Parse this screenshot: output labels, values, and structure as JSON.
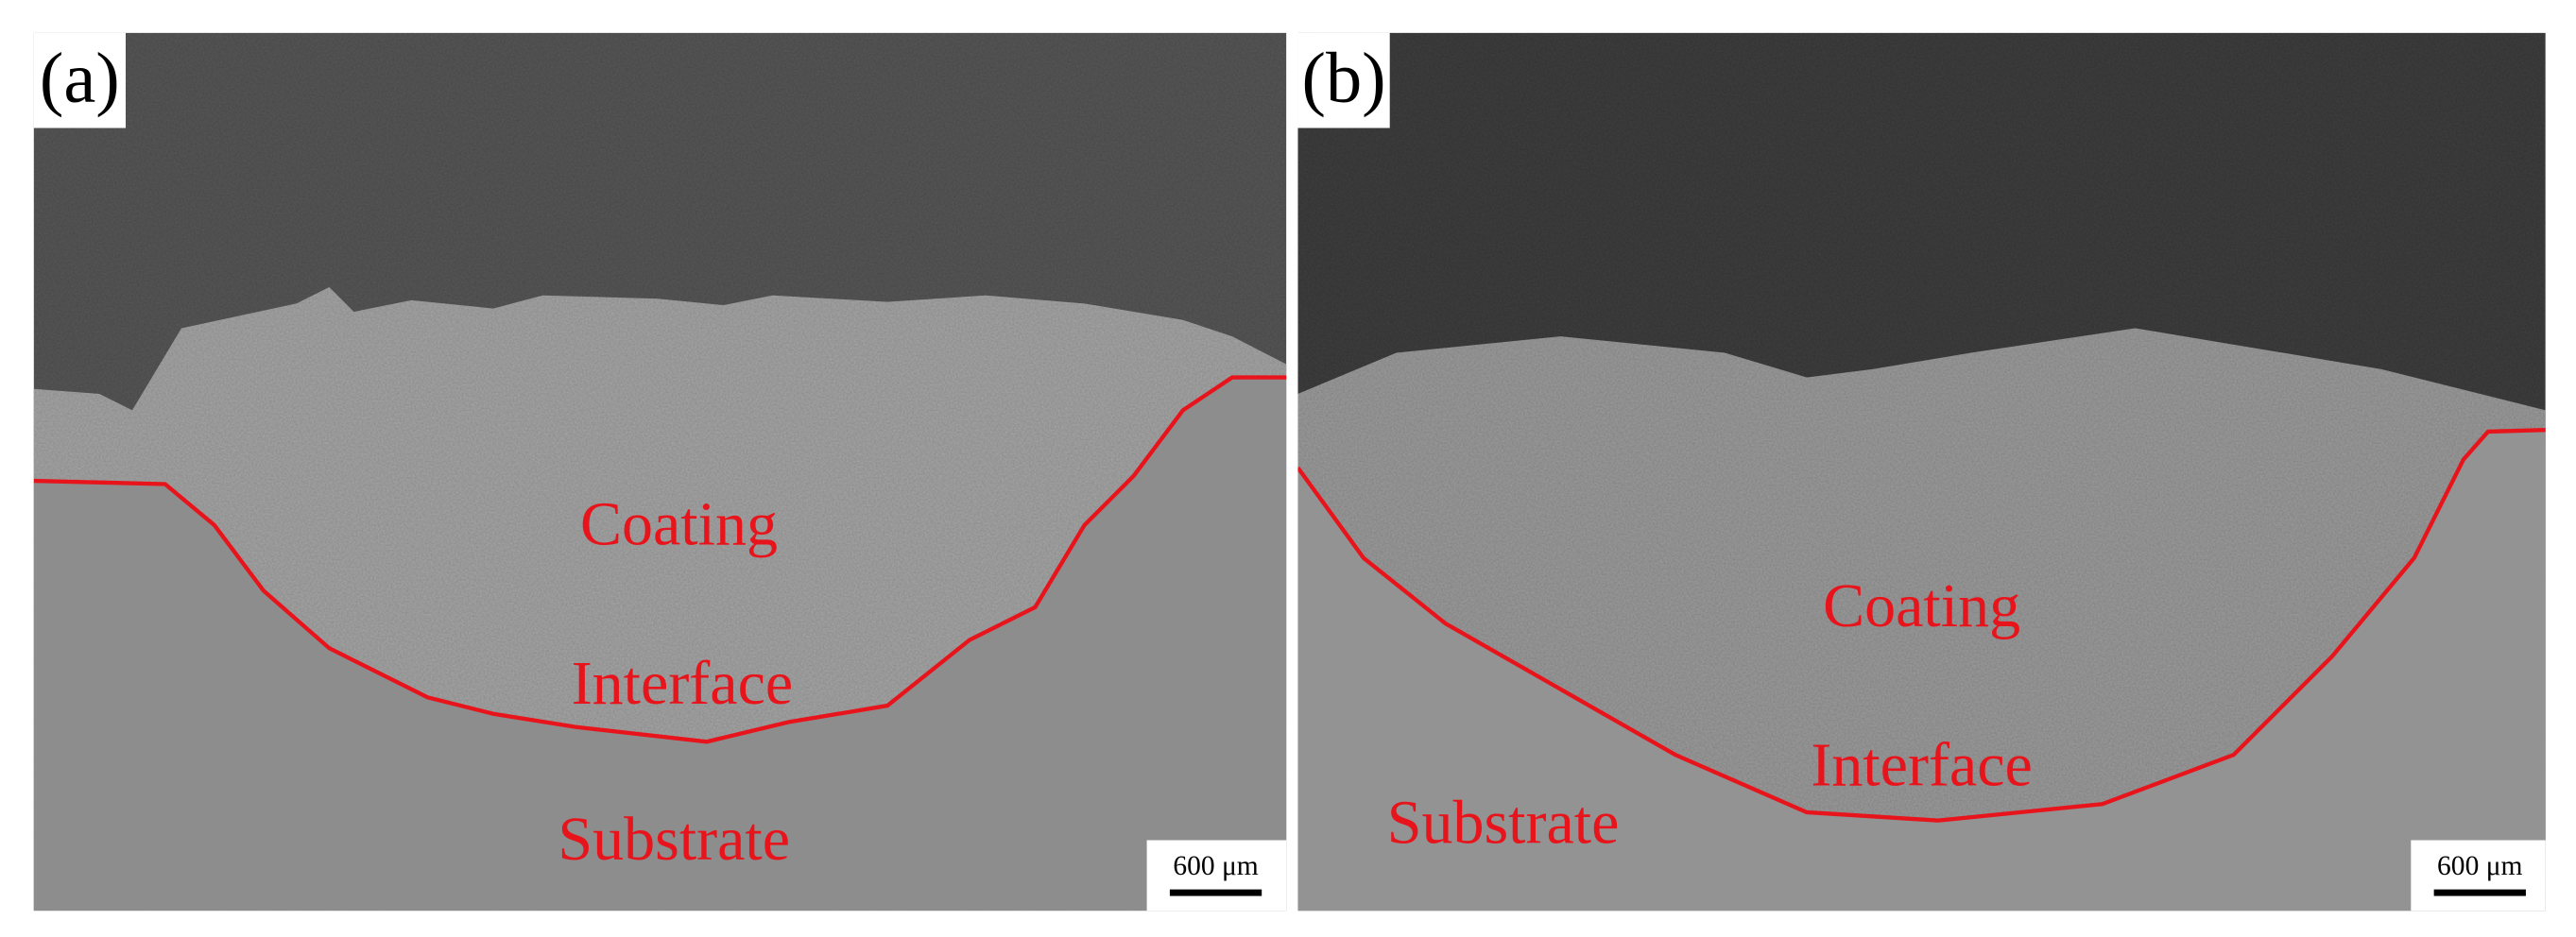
{
  "panels": [
    {
      "label": "(a)",
      "coating": "Coating",
      "interface": "Interface",
      "substrate": "Substrate",
      "scale_bar": "600 μm"
    },
    {
      "label": "(b)",
      "coating": "Coating",
      "interface": "Interface",
      "substrate": "Substrate",
      "scale_bar": "600 μm"
    }
  ]
}
